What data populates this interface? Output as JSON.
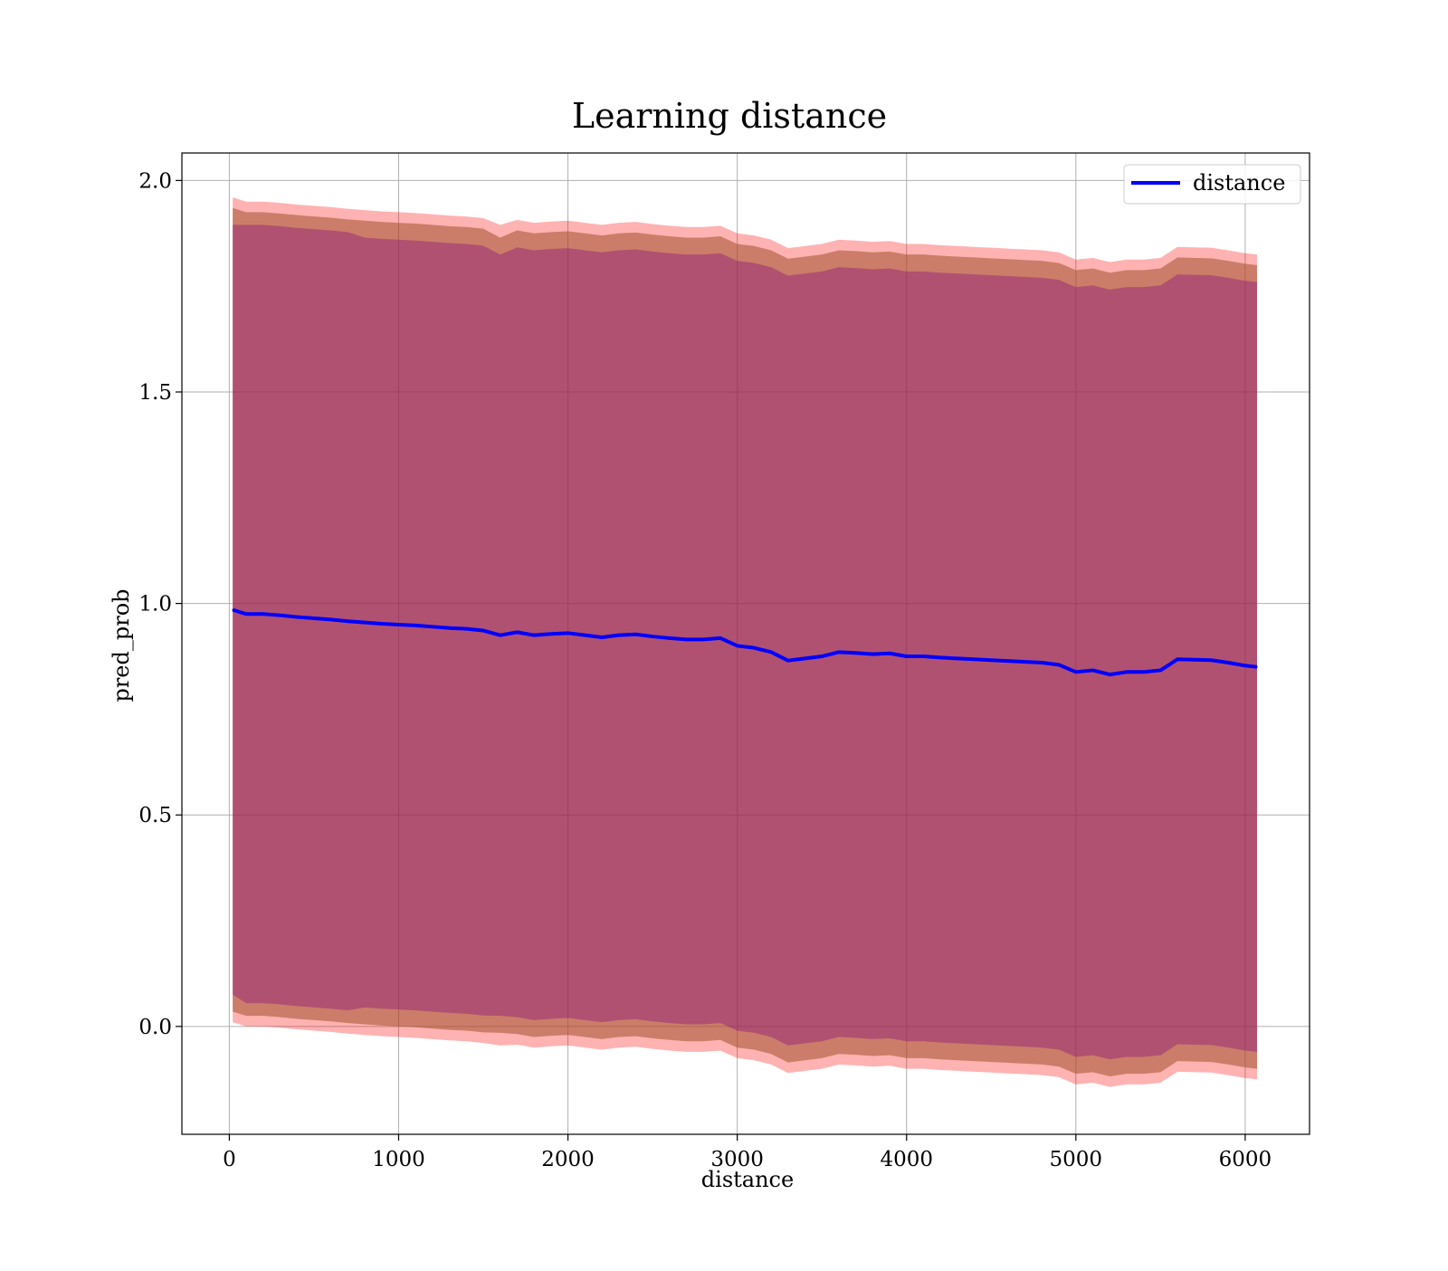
{
  "chart_data": {
    "type": "line",
    "title": "Learning distance",
    "xlabel": "distance",
    "ylabel": "pred_prob",
    "xlim": [
      -280,
      6380
    ],
    "ylim": [
      -0.255,
      2.065
    ],
    "xticks": [
      0,
      1000,
      2000,
      3000,
      4000,
      5000,
      6000
    ],
    "xtick_labels": [
      "0",
      "1000",
      "2000",
      "3000",
      "4000",
      "5000",
      "6000"
    ],
    "yticks": [
      0.0,
      0.5,
      1.0,
      1.5,
      2.0
    ],
    "ytick_labels": [
      "0.0",
      "0.5",
      "1.0",
      "1.5",
      "2.0"
    ],
    "grid": true,
    "legend_position": "top-right",
    "colors": {
      "line": "#0000ff",
      "outer_band": "#ff0000",
      "middle_band": "#a0522d",
      "inner_band": "#800080",
      "grid": "#b0b0b0",
      "frame": "#000000"
    },
    "series": [
      {
        "name": "distance",
        "x": [
          20,
          100,
          200,
          300,
          400,
          500,
          600,
          700,
          800,
          900,
          1000,
          1100,
          1200,
          1300,
          1400,
          1500,
          1600,
          1700,
          1800,
          1900,
          2000,
          2100,
          2200,
          2300,
          2400,
          2500,
          2600,
          2700,
          2800,
          2900,
          3000,
          3100,
          3200,
          3300,
          3400,
          3500,
          3600,
          3700,
          3800,
          3900,
          4000,
          4100,
          4200,
          4300,
          4400,
          4500,
          4600,
          4700,
          4800,
          4900,
          5000,
          5100,
          5200,
          5300,
          5400,
          5500,
          5600,
          5700,
          5800,
          5900,
          6000,
          6070
        ],
        "y": [
          0.985,
          0.975,
          0.975,
          0.972,
          0.968,
          0.965,
          0.962,
          0.958,
          0.955,
          0.952,
          0.95,
          0.948,
          0.945,
          0.942,
          0.94,
          0.936,
          0.925,
          0.932,
          0.925,
          0.928,
          0.93,
          0.925,
          0.92,
          0.925,
          0.927,
          0.922,
          0.918,
          0.915,
          0.915,
          0.918,
          0.9,
          0.895,
          0.885,
          0.865,
          0.87,
          0.875,
          0.885,
          0.883,
          0.88,
          0.882,
          0.875,
          0.875,
          0.872,
          0.87,
          0.868,
          0.866,
          0.864,
          0.862,
          0.86,
          0.855,
          0.838,
          0.842,
          0.832,
          0.838,
          0.838,
          0.842,
          0.868,
          0.867,
          0.866,
          0.86,
          0.853,
          0.85
        ],
        "band_inner": [
          0.91,
          0.92,
          0.92,
          0.92,
          0.92,
          0.92,
          0.92,
          0.92,
          0.91,
          0.91,
          0.91,
          0.91,
          0.91,
          0.91,
          0.91,
          0.91,
          0.9,
          0.91,
          0.91,
          0.91,
          0.91,
          0.91,
          0.91,
          0.91,
          0.91,
          0.91,
          0.91,
          0.91,
          0.91,
          0.91,
          0.91,
          0.91,
          0.91,
          0.91,
          0.91,
          0.91,
          0.91,
          0.91,
          0.91,
          0.91,
          0.91,
          0.91,
          0.91,
          0.91,
          0.91,
          0.91,
          0.91,
          0.91,
          0.91,
          0.91,
          0.91,
          0.91,
          0.91,
          0.91,
          0.91,
          0.91,
          0.91,
          0.91,
          0.91,
          0.91,
          0.91,
          0.91
        ],
        "band_middle": [
          0.95,
          0.95,
          0.95,
          0.95,
          0.95,
          0.95,
          0.95,
          0.95,
          0.95,
          0.95,
          0.95,
          0.95,
          0.95,
          0.95,
          0.95,
          0.95,
          0.94,
          0.95,
          0.95,
          0.95,
          0.95,
          0.95,
          0.95,
          0.95,
          0.95,
          0.95,
          0.95,
          0.95,
          0.95,
          0.95,
          0.95,
          0.95,
          0.95,
          0.95,
          0.95,
          0.95,
          0.95,
          0.95,
          0.95,
          0.95,
          0.95,
          0.95,
          0.95,
          0.95,
          0.95,
          0.95,
          0.95,
          0.95,
          0.95,
          0.95,
          0.95,
          0.95,
          0.95,
          0.95,
          0.95,
          0.95,
          0.95,
          0.95,
          0.95,
          0.95,
          0.95,
          0.95
        ],
        "band_outer": [
          0.975,
          0.975,
          0.975,
          0.975,
          0.975,
          0.975,
          0.975,
          0.975,
          0.975,
          0.975,
          0.975,
          0.975,
          0.975,
          0.975,
          0.975,
          0.975,
          0.97,
          0.975,
          0.975,
          0.975,
          0.975,
          0.975,
          0.975,
          0.975,
          0.975,
          0.975,
          0.975,
          0.975,
          0.975,
          0.975,
          0.975,
          0.975,
          0.975,
          0.975,
          0.975,
          0.975,
          0.975,
          0.975,
          0.975,
          0.975,
          0.975,
          0.975,
          0.975,
          0.975,
          0.975,
          0.975,
          0.975,
          0.975,
          0.975,
          0.975,
          0.975,
          0.975,
          0.975,
          0.975,
          0.975,
          0.975,
          0.975,
          0.975,
          0.975,
          0.975,
          0.975,
          0.975
        ]
      }
    ]
  }
}
